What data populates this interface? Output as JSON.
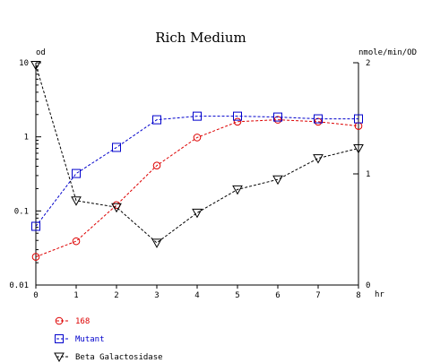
{
  "chart_data": {
    "type": "line",
    "title": "Rich Medium",
    "xlabel": "hr",
    "ylabel_left": "od",
    "ylabel_right": "nmole/min/OD",
    "x": [
      0,
      1,
      2,
      3,
      4,
      5,
      6,
      7,
      8
    ],
    "xlim": [
      0,
      8
    ],
    "x_ticks": [
      "0",
      "1",
      "2",
      "3",
      "4",
      "5",
      "6",
      "7",
      "8"
    ],
    "y_left": {
      "scale": "log",
      "lim": [
        0.01,
        10
      ],
      "ticks": [
        "0.01",
        "0.1",
        "1",
        "10"
      ]
    },
    "y_right": {
      "scale": "linear",
      "lim": [
        0,
        2
      ],
      "ticks": [
        "0",
        "1",
        "2"
      ]
    },
    "grid": false,
    "legend_position": "bottom-left",
    "series": [
      {
        "name": "168",
        "axis": "left",
        "marker": "circle",
        "color": "#dd0000",
        "values": [
          0.024,
          0.039,
          0.12,
          0.41,
          0.98,
          1.6,
          1.7,
          1.6,
          1.4
        ]
      },
      {
        "name": "Mutant",
        "axis": "left",
        "marker": "square",
        "color": "#0000cc",
        "values": [
          0.062,
          0.32,
          0.72,
          1.7,
          1.9,
          1.9,
          1.85,
          1.75,
          1.75
        ]
      },
      {
        "name": "Beta Galactosidase",
        "axis": "right",
        "marker": "triangle-down",
        "color": "#000000",
        "values": [
          1.98,
          0.76,
          0.7,
          0.38,
          0.65,
          0.86,
          0.95,
          1.14,
          1.23
        ]
      }
    ]
  }
}
